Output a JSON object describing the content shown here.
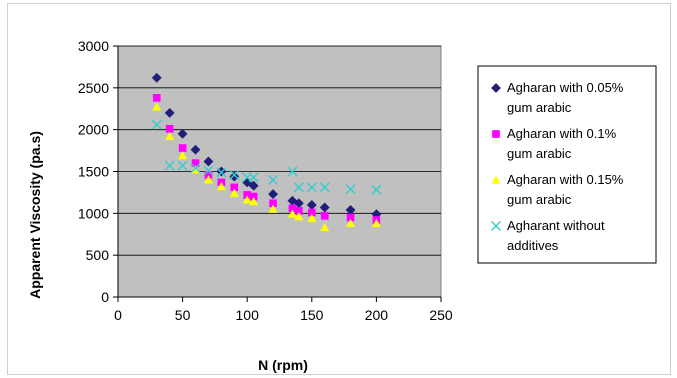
{
  "chart_data": {
    "type": "scatter",
    "title": "",
    "xlabel": "N (rpm)",
    "ylabel": "Apparent Viscosity (pa.s)",
    "xlim": [
      0,
      250
    ],
    "ylim": [
      0,
      3000
    ],
    "x_ticks": [
      "0",
      "50",
      "100",
      "150",
      "200",
      "250"
    ],
    "y_ticks": [
      "0",
      "500",
      "1000",
      "1500",
      "2000",
      "2500",
      "3000"
    ],
    "grid": "horizontal",
    "plot_background": "#c0c0c0",
    "legend_position": "right",
    "series": [
      {
        "name_lines": [
          "Agharan with  0.05%",
          "gum arabic"
        ],
        "marker": "diamond",
        "color": "#1f1f7a",
        "points": [
          [
            30,
            2620
          ],
          [
            40,
            2200
          ],
          [
            50,
            1950
          ],
          [
            60,
            1760
          ],
          [
            70,
            1620
          ],
          [
            80,
            1500
          ],
          [
            90,
            1440
          ],
          [
            100,
            1370
          ],
          [
            105,
            1330
          ],
          [
            120,
            1230
          ],
          [
            135,
            1150
          ],
          [
            140,
            1120
          ],
          [
            150,
            1100
          ],
          [
            160,
            1070
          ],
          [
            180,
            1040
          ],
          [
            200,
            990
          ]
        ]
      },
      {
        "name_lines": [
          "Agharan with  0.1%",
          "gum arabic"
        ],
        "marker": "square",
        "color": "#ff00ff",
        "points": [
          [
            30,
            2380
          ],
          [
            40,
            2010
          ],
          [
            50,
            1780
          ],
          [
            60,
            1600
          ],
          [
            70,
            1460
          ],
          [
            80,
            1370
          ],
          [
            90,
            1310
          ],
          [
            100,
            1220
          ],
          [
            105,
            1200
          ],
          [
            120,
            1120
          ],
          [
            135,
            1060
          ],
          [
            140,
            1030
          ],
          [
            150,
            1010
          ],
          [
            160,
            970
          ],
          [
            180,
            950
          ],
          [
            200,
            920
          ]
        ]
      },
      {
        "name_lines": [
          "Agharan with  0.15%",
          "gum  arabic"
        ],
        "marker": "triangle",
        "color": "#ffff00",
        "points": [
          [
            30,
            2270
          ],
          [
            40,
            1920
          ],
          [
            50,
            1690
          ],
          [
            60,
            1520
          ],
          [
            70,
            1400
          ],
          [
            80,
            1320
          ],
          [
            90,
            1240
          ],
          [
            100,
            1160
          ],
          [
            105,
            1140
          ],
          [
            120,
            1050
          ],
          [
            135,
            990
          ],
          [
            140,
            960
          ],
          [
            150,
            940
          ],
          [
            160,
            830
          ],
          [
            180,
            880
          ],
          [
            200,
            880
          ]
        ]
      },
      {
        "name_lines": [
          "Agharant without",
          "additives"
        ],
        "marker": "x",
        "color": "#33cccc",
        "points": [
          [
            30,
            2060
          ],
          [
            40,
            1570
          ],
          [
            50,
            1570
          ],
          [
            60,
            1540
          ],
          [
            70,
            1510
          ],
          [
            80,
            1490
          ],
          [
            90,
            1460
          ],
          [
            100,
            1430
          ],
          [
            105,
            1430
          ],
          [
            120,
            1400
          ],
          [
            135,
            1500
          ],
          [
            140,
            1310
          ],
          [
            150,
            1310
          ],
          [
            160,
            1310
          ],
          [
            180,
            1290
          ],
          [
            200,
            1280
          ]
        ]
      }
    ]
  }
}
